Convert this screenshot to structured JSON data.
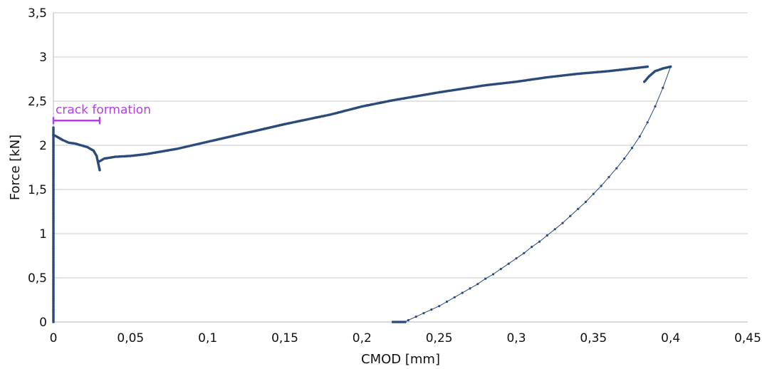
{
  "chart_data": {
    "type": "scatter",
    "title": "",
    "xlabel": "CMOD [mm]",
    "ylabel": "Force [kN]",
    "xlim": [
      0,
      0.45
    ],
    "ylim": [
      0,
      3.5
    ],
    "x_ticks": [
      0,
      0.05,
      0.1,
      0.15,
      0.2,
      0.25,
      0.3,
      0.35,
      0.4,
      0.45
    ],
    "x_tick_labels": [
      "0",
      "0,05",
      "0,1",
      "0,15",
      "0,2",
      "0,25",
      "0,3",
      "0,35",
      "0,4",
      "0,45"
    ],
    "y_ticks": [
      0,
      0.5,
      1,
      1.5,
      2,
      2.5,
      3,
      3.5
    ],
    "y_tick_labels": [
      "0",
      "0,5",
      "1",
      "1,5",
      "2",
      "2,5",
      "3",
      "3,5"
    ],
    "grid": "horizontal",
    "legend": "none",
    "series_color": "#2a4a7a",
    "annotation": {
      "text": "crack formation",
      "x_start": 0,
      "x_end": 0.03,
      "y": 2.28,
      "color": "#b040e0"
    },
    "series": [
      {
        "style": "markers",
        "segments": [
          {
            "x": [
              0,
              0
            ],
            "y": [
              0,
              2.2
            ]
          },
          {
            "x": [
              0,
              0.002,
              0.006,
              0.01,
              0.014,
              0.018,
              0.022,
              0.026,
              0.028,
              0.029,
              0.03
            ],
            "y": [
              2.12,
              2.1,
              2.06,
              2.03,
              2.02,
              2.0,
              1.98,
              1.94,
              1.88,
              1.8,
              1.72
            ]
          },
          {
            "x": [
              0.03,
              0.033,
              0.04,
              0.05,
              0.06,
              0.08,
              0.1,
              0.12,
              0.15,
              0.18,
              0.2,
              0.22,
              0.25,
              0.28,
              0.3,
              0.32,
              0.34,
              0.36,
              0.37,
              0.38,
              0.385
            ],
            "y": [
              1.82,
              1.85,
              1.87,
              1.88,
              1.9,
              1.96,
              2.04,
              2.12,
              2.24,
              2.35,
              2.44,
              2.51,
              2.6,
              2.68,
              2.72,
              2.77,
              2.81,
              2.84,
              2.86,
              2.88,
              2.89
            ]
          },
          {
            "x": [
              0.383,
              0.386,
              0.39,
              0.395,
              0.4
            ],
            "y": [
              2.72,
              2.78,
              2.84,
              2.87,
              2.89
            ]
          },
          {
            "x": [
              0.22,
              0.228
            ],
            "y": [
              0,
              0
            ]
          }
        ]
      },
      {
        "style": "line-markers",
        "segments": [
          {
            "x": [
              0.4,
              0.395,
              0.39,
              0.385,
              0.38,
              0.375,
              0.37,
              0.365,
              0.36,
              0.355,
              0.35,
              0.345,
              0.34,
              0.335,
              0.33,
              0.325,
              0.32,
              0.315,
              0.31,
              0.305,
              0.3,
              0.295,
              0.29,
              0.285,
              0.28,
              0.275,
              0.27,
              0.265,
              0.26,
              0.255,
              0.25,
              0.245,
              0.24,
              0.235,
              0.23,
              0.228
            ],
            "y": [
              2.89,
              2.65,
              2.44,
              2.26,
              2.1,
              1.97,
              1.85,
              1.74,
              1.64,
              1.54,
              1.45,
              1.36,
              1.28,
              1.2,
              1.12,
              1.05,
              0.98,
              0.91,
              0.85,
              0.78,
              0.72,
              0.66,
              0.6,
              0.54,
              0.49,
              0.43,
              0.38,
              0.33,
              0.28,
              0.23,
              0.18,
              0.14,
              0.1,
              0.06,
              0.02,
              0
            ]
          }
        ]
      }
    ]
  }
}
